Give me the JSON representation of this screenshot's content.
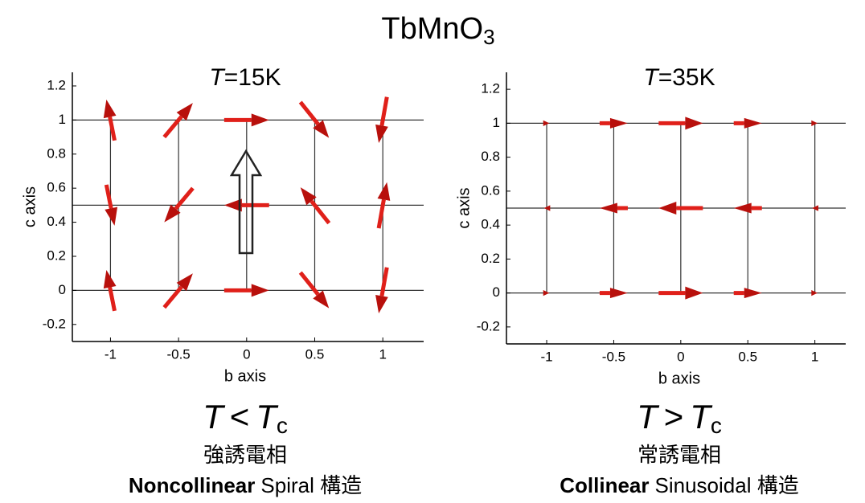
{
  "title": "TbMnO",
  "title_sub": "3",
  "chart_data": [
    {
      "type": "quiver",
      "title_var": "T",
      "title": "=15K",
      "xlabel": "b axis",
      "ylabel": "c axis",
      "xlim": [
        -1.28,
        1.3
      ],
      "ylim": [
        -0.3,
        1.28
      ],
      "xticks": [
        -1,
        -0.5,
        0,
        0.5,
        1
      ],
      "yticks": [
        -0.2,
        0,
        0.2,
        0.4,
        0.6,
        0.8,
        1,
        1.2
      ],
      "color": "#e0201a",
      "x": [
        -1,
        -0.5,
        0,
        0.5,
        1,
        -1,
        -0.5,
        0,
        0.5,
        1,
        -1,
        -0.5,
        0,
        0.5,
        1
      ],
      "y": [
        1,
        1,
        1,
        1,
        1,
        0.5,
        0.5,
        0.5,
        0.5,
        0.5,
        0,
        0,
        0,
        0,
        0
      ],
      "u": [
        -0.06,
        0.21,
        0.33,
        0.21,
        -0.06,
        0.06,
        -0.21,
        -0.33,
        -0.21,
        0.06,
        -0.06,
        0.21,
        0.33,
        0.21,
        -0.06
      ],
      "v": [
        0.24,
        0.2,
        0,
        -0.21,
        -0.27,
        -0.24,
        -0.2,
        0,
        0.21,
        0.27,
        0.24,
        0.2,
        0,
        -0.21,
        -0.27
      ],
      "condition": {
        "left": "T",
        "op": "<",
        "right": "T",
        "sub": "c"
      },
      "phase": "強誘電相",
      "structure_bold": "Noncollinear",
      "structure": "Spiral 構造"
    },
    {
      "type": "quiver",
      "title_var": "T",
      "title": "=35K",
      "xlabel": "b axis",
      "ylabel": "c axis",
      "xlim": [
        -1.3,
        1.23
      ],
      "ylim": [
        -0.3,
        1.3
      ],
      "xticks": [
        -1,
        -0.5,
        0,
        0.5,
        1
      ],
      "yticks": [
        -0.2,
        0,
        0.2,
        0.4,
        0.6,
        0.8,
        1,
        1.2
      ],
      "color": "#e0201a",
      "x": [
        -1,
        -0.5,
        0,
        0.5,
        1,
        -1,
        -0.5,
        0,
        0.5,
        1,
        -1,
        -0.5,
        0,
        0.5,
        1
      ],
      "y": [
        1,
        1,
        1,
        1,
        1,
        0.5,
        0.5,
        0.5,
        0.5,
        0.5,
        0,
        0,
        0,
        0,
        0
      ],
      "u": [
        0.04,
        0.21,
        0.33,
        0.21,
        0.04,
        -0.04,
        -0.21,
        -0.33,
        -0.21,
        -0.04,
        0.04,
        0.21,
        0.33,
        0.21,
        0.04
      ],
      "v": [
        0,
        0,
        0,
        0,
        0,
        0,
        0,
        0,
        0,
        0,
        0,
        0,
        0,
        0,
        0
      ],
      "condition": {
        "left": "T",
        "op": ">",
        "right": "T",
        "sub": "c"
      },
      "phase": "常誘電相",
      "structure_bold": "Collinear",
      "structure": "Sinusoidal 構造"
    }
  ]
}
